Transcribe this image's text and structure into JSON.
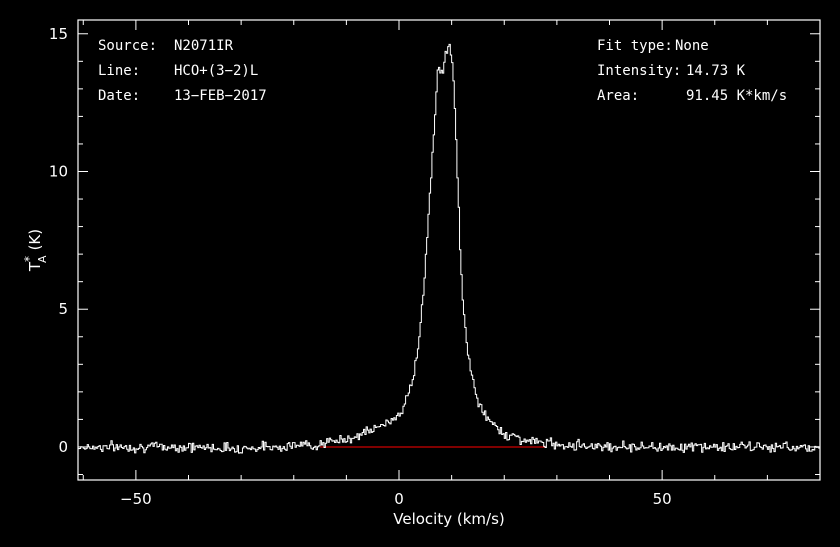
{
  "info": {
    "source_key": "Source:",
    "source_value": "N2071IR",
    "line_key": "Line:",
    "line_value": "HCO+(3−2)L",
    "date_key": "Date:",
    "date_value": "13−FEB−2017",
    "fit_key": "Fit type:",
    "fit_value": "None",
    "intensity_key": "Intensity:",
    "intensity_value": "14.73 K",
    "area_key": "Area:",
    "area_value": "91.45 K*km/s"
  },
  "chart_data": {
    "type": "line",
    "title": "",
    "xlabel": "Velocity (km/s)",
    "ylabel": "T",
    "ylabel_sub": "A",
    "ylabel_sup": "*",
    "ylabel_unit": "(K)",
    "xlim": [
      -61,
      80
    ],
    "ylim": [
      -1.2,
      15.5
    ],
    "x_ticks": [
      -50,
      0,
      50
    ],
    "x_tick_labels": [
      "−50",
      "0",
      "50"
    ],
    "y_ticks": [
      0,
      5,
      10,
      15
    ],
    "y_tick_labels": [
      "0",
      "5",
      "10",
      "15"
    ],
    "grid": false,
    "colors": {
      "background": "#000000",
      "frame": "#ffffff",
      "spectrum": "#ffffff",
      "baseline": "#ff0000"
    },
    "baseline": {
      "x": [
        -15,
        28
      ],
      "y": [
        0,
        0
      ]
    },
    "series": [
      {
        "x": [
          -61,
          -50,
          -40,
          -30,
          -20,
          -15,
          -12,
          -10,
          -8,
          -6,
          -4,
          -2,
          0,
          1,
          2,
          3,
          4,
          5,
          6,
          7,
          7.5,
          8,
          8.5,
          9,
          9.5,
          10,
          10.5,
          11,
          11.5,
          12,
          13,
          14,
          15,
          16,
          18,
          20,
          22,
          25,
          30,
          40,
          50,
          60,
          70,
          80
        ],
        "y": [
          0,
          0,
          0,
          -0.05,
          0.05,
          0.1,
          0.2,
          0.3,
          0.4,
          0.55,
          0.7,
          0.9,
          1.2,
          1.5,
          2.0,
          2.8,
          4.2,
          6.5,
          9.5,
          12.5,
          13.8,
          13.5,
          13.8,
          14.4,
          14.73,
          14.2,
          12.8,
          10.5,
          8.0,
          5.5,
          3.5,
          2.5,
          1.7,
          1.2,
          0.8,
          0.5,
          0.35,
          0.2,
          0.1,
          0.02,
          0,
          0,
          0,
          0
        ]
      }
    ]
  }
}
